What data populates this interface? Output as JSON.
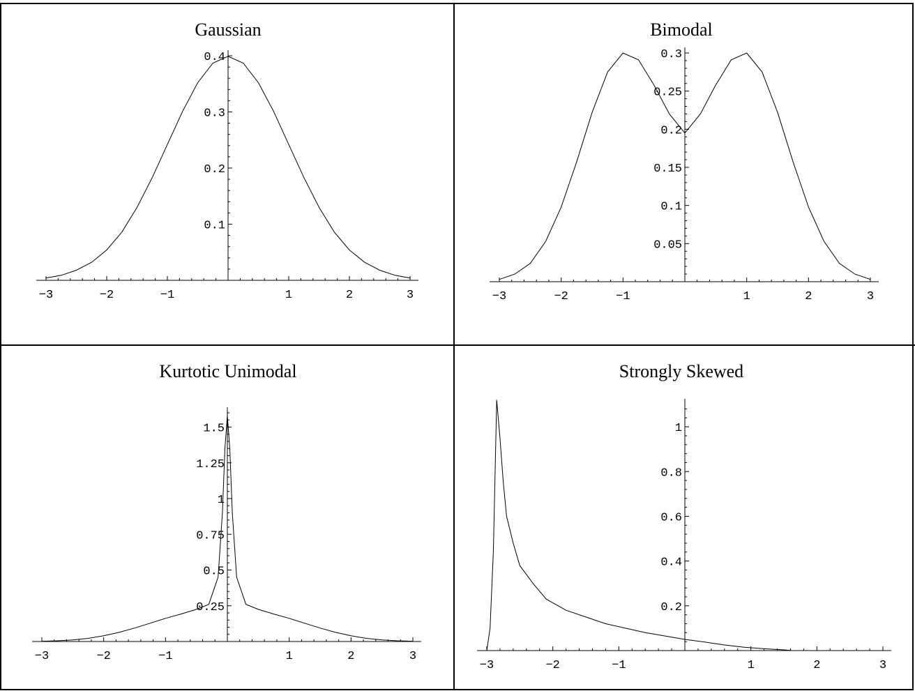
{
  "page": {
    "title": ""
  },
  "chart_data": [
    {
      "type": "line",
      "title": "Gaussian",
      "xlim": [
        -3,
        3
      ],
      "ylim": [
        0,
        0.4
      ],
      "x_ticks": [
        -3,
        -2,
        -1,
        1,
        2,
        3
      ],
      "x_tick_labels": [
        "-3",
        "-2",
        "-1",
        "1",
        "2",
        "3"
      ],
      "y_ticks": [
        0.1,
        0.2,
        0.3,
        0.4
      ],
      "y_tick_labels": [
        "0.1",
        "0.2",
        "0.3",
        "0.4"
      ],
      "grid": false,
      "series": [
        {
          "x": [
            -3,
            -2.75,
            -2.5,
            -2.25,
            -2,
            -1.75,
            -1.5,
            -1.25,
            -1,
            -0.75,
            -0.5,
            -0.25,
            0,
            0.25,
            0.5,
            0.75,
            1,
            1.25,
            1.5,
            1.75,
            2,
            2.25,
            2.5,
            2.75,
            3
          ],
          "y": [
            0.004,
            0.009,
            0.018,
            0.032,
            0.054,
            0.086,
            0.13,
            0.183,
            0.242,
            0.301,
            0.352,
            0.387,
            0.399,
            0.387,
            0.352,
            0.301,
            0.242,
            0.183,
            0.13,
            0.086,
            0.054,
            0.032,
            0.018,
            0.009,
            0.004
          ]
        }
      ]
    },
    {
      "type": "line",
      "title": "Bimodal",
      "xlim": [
        -3,
        3
      ],
      "ylim": [
        0,
        0.3
      ],
      "x_ticks": [
        -3,
        -2,
        -1,
        1,
        2,
        3
      ],
      "x_tick_labels": [
        "-3",
        "-2",
        "-1",
        "1",
        "2",
        "3"
      ],
      "y_ticks": [
        0.05,
        0.1,
        0.15,
        0.2,
        0.25,
        0.3
      ],
      "y_tick_labels": [
        "0.05",
        "0.1",
        "0.15",
        "0.2",
        "0.25",
        "0.3"
      ],
      "grid": false,
      "series": [
        {
          "x": [
            -3,
            -2.75,
            -2.5,
            -2.25,
            -2,
            -1.75,
            -1.5,
            -1.25,
            -1,
            -0.75,
            -0.5,
            -0.25,
            0,
            0.25,
            0.5,
            0.75,
            1,
            1.25,
            1.5,
            1.75,
            2,
            2.25,
            2.5,
            2.75,
            3
          ],
          "y": [
            0.003,
            0.01,
            0.024,
            0.053,
            0.098,
            0.157,
            0.222,
            0.275,
            0.3,
            0.291,
            0.258,
            0.22,
            0.195,
            0.22,
            0.258,
            0.291,
            0.3,
            0.275,
            0.222,
            0.157,
            0.098,
            0.053,
            0.024,
            0.01,
            0.003
          ]
        }
      ]
    },
    {
      "type": "line",
      "title": "Kurtotic Unimodal",
      "xlim": [
        -3,
        3
      ],
      "ylim": [
        0,
        1.6
      ],
      "x_ticks": [
        -3,
        -2,
        -1,
        1,
        2,
        3
      ],
      "x_tick_labels": [
        "-3",
        "-2",
        "-1",
        "1",
        "2",
        "3"
      ],
      "y_ticks": [
        0.25,
        0.5,
        0.75,
        1,
        1.25,
        1.5
      ],
      "y_tick_labels": [
        "0.25",
        "0.5",
        "0.75",
        "1",
        "1.25",
        "1.5"
      ],
      "grid": false,
      "series": [
        {
          "x": [
            -3,
            -2.75,
            -2.5,
            -2.25,
            -2,
            -1.75,
            -1.5,
            -1.25,
            -1,
            -0.75,
            -0.5,
            -0.3,
            -0.15,
            -0.08,
            -0.04,
            0,
            0.04,
            0.08,
            0.15,
            0.3,
            0.5,
            0.75,
            1,
            1.25,
            1.5,
            1.75,
            2,
            2.25,
            2.5,
            2.75,
            3
          ],
          "y": [
            0.002,
            0.005,
            0.011,
            0.022,
            0.04,
            0.064,
            0.094,
            0.128,
            0.162,
            0.192,
            0.225,
            0.26,
            0.45,
            0.9,
            1.35,
            1.58,
            1.35,
            0.9,
            0.45,
            0.26,
            0.225,
            0.192,
            0.162,
            0.128,
            0.094,
            0.064,
            0.04,
            0.022,
            0.011,
            0.005,
            0.002
          ]
        }
      ]
    },
    {
      "type": "line",
      "title": "Strongly Skewed",
      "xlim": [
        -3,
        3
      ],
      "ylim": [
        0,
        1.1
      ],
      "x_ticks": [
        -3,
        -2,
        -1,
        1,
        2,
        3
      ],
      "x_tick_labels": [
        "-3",
        "-2",
        "-1",
        "1",
        "2",
        "3"
      ],
      "y_ticks": [
        0.2,
        0.4,
        0.6,
        0.8,
        1
      ],
      "y_tick_labels": [
        "0.2",
        "0.4",
        "0.6",
        "0.8",
        "1"
      ],
      "grid": false,
      "series": [
        {
          "x": [
            -3,
            -2.95,
            -2.9,
            -2.85,
            -2.8,
            -2.75,
            -2.7,
            -2.6,
            -2.5,
            -2.3,
            -2.1,
            -1.8,
            -1.5,
            -1.2,
            -0.9,
            -0.6,
            -0.3,
            0,
            0.3,
            0.6,
            0.9,
            1.2,
            1.5,
            1.6
          ],
          "y": [
            0,
            0.1,
            0.45,
            1.12,
            0.95,
            0.75,
            0.6,
            0.48,
            0.38,
            0.3,
            0.23,
            0.18,
            0.15,
            0.12,
            0.1,
            0.08,
            0.065,
            0.05,
            0.038,
            0.025,
            0.015,
            0.008,
            0.003,
            0.001
          ]
        }
      ]
    }
  ]
}
